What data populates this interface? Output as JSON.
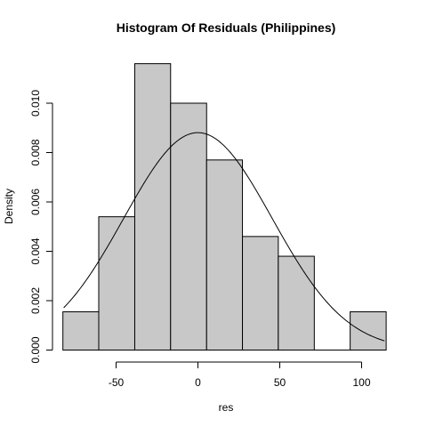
{
  "chart_data": {
    "type": "bar",
    "title": "Histogram Of Residuals (Philippines)",
    "xlabel": "res",
    "ylabel": "Density",
    "xlim": [
      -82,
      114
    ],
    "ylim": [
      0,
      0.0116
    ],
    "grid": false,
    "bins": [
      {
        "x0": -82.5,
        "x1": -60.6,
        "density": 0.00155
      },
      {
        "x0": -60.6,
        "x1": -38.6,
        "density": 0.0054
      },
      {
        "x0": -38.6,
        "x1": -16.7,
        "density": 0.0116
      },
      {
        "x0": -16.7,
        "x1": 5.3,
        "density": 0.01
      },
      {
        "x0": 5.3,
        "x1": 27.2,
        "density": 0.0077
      },
      {
        "x0": 27.2,
        "x1": 49.1,
        "density": 0.0046
      },
      {
        "x0": 49.1,
        "x1": 71.1,
        "density": 0.0038
      },
      {
        "x0": 71.1,
        "x1": 93.0,
        "density": 0.0
      },
      {
        "x0": 93.0,
        "x1": 115.0,
        "density": 0.00155
      }
    ],
    "normal_curve": {
      "mean": 0,
      "sd": 45.3
    },
    "x_ticks": [
      "-50",
      "0",
      "50",
      "100"
    ],
    "x_tick_values": [
      -50,
      0,
      50,
      100
    ],
    "y_ticks": [
      "0.000",
      "0.002",
      "0.004",
      "0.006",
      "0.008",
      "0.010"
    ],
    "y_tick_values": [
      0,
      0.002,
      0.004,
      0.006,
      0.008,
      0.01
    ]
  }
}
